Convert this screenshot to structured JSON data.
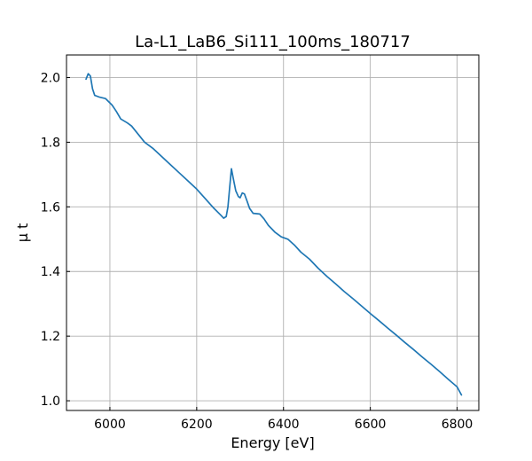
{
  "chart_data": {
    "type": "line",
    "title": "La-L1_LaB6_Si111_100ms_180717",
    "xlabel": "Energy [eV]",
    "ylabel": "μ t",
    "xlim": [
      5900,
      6850
    ],
    "ylim": [
      0.97,
      2.07
    ],
    "xticks": [
      6000,
      6200,
      6400,
      6600,
      6800
    ],
    "yticks": [
      1.0,
      1.2,
      1.4,
      1.6,
      1.8,
      2.0
    ],
    "xtick_labels": [
      "6000",
      "6200",
      "6400",
      "6600",
      "6800"
    ],
    "ytick_labels": [
      "1.0",
      "1.2",
      "1.4",
      "1.6",
      "1.8",
      "2.0"
    ],
    "grid": true,
    "legend": "none",
    "series": [
      {
        "color": "#1f77b4",
        "points": [
          [
            5945,
            1.995
          ],
          [
            5950,
            2.012
          ],
          [
            5955,
            2.005
          ],
          [
            5960,
            1.965
          ],
          [
            5965,
            1.945
          ],
          [
            5975,
            1.94
          ],
          [
            5990,
            1.935
          ],
          [
            6005,
            1.915
          ],
          [
            6015,
            1.895
          ],
          [
            6025,
            1.872
          ],
          [
            6040,
            1.86
          ],
          [
            6050,
            1.85
          ],
          [
            6065,
            1.825
          ],
          [
            6080,
            1.8
          ],
          [
            6100,
            1.78
          ],
          [
            6120,
            1.755
          ],
          [
            6140,
            1.73
          ],
          [
            6160,
            1.705
          ],
          [
            6180,
            1.68
          ],
          [
            6200,
            1.655
          ],
          [
            6220,
            1.625
          ],
          [
            6240,
            1.595
          ],
          [
            6255,
            1.575
          ],
          [
            6262,
            1.565
          ],
          [
            6268,
            1.57
          ],
          [
            6272,
            1.6
          ],
          [
            6276,
            1.66
          ],
          [
            6280,
            1.718
          ],
          [
            6284,
            1.69
          ],
          [
            6290,
            1.65
          ],
          [
            6296,
            1.632
          ],
          [
            6300,
            1.628
          ],
          [
            6305,
            1.643
          ],
          [
            6310,
            1.64
          ],
          [
            6316,
            1.618
          ],
          [
            6322,
            1.595
          ],
          [
            6330,
            1.58
          ],
          [
            6345,
            1.578
          ],
          [
            6355,
            1.563
          ],
          [
            6365,
            1.543
          ],
          [
            6380,
            1.522
          ],
          [
            6395,
            1.507
          ],
          [
            6410,
            1.5
          ],
          [
            6425,
            1.482
          ],
          [
            6440,
            1.46
          ],
          [
            6460,
            1.438
          ],
          [
            6480,
            1.41
          ],
          [
            6500,
            1.385
          ],
          [
            6520,
            1.362
          ],
          [
            6540,
            1.338
          ],
          [
            6560,
            1.316
          ],
          [
            6580,
            1.293
          ],
          [
            6600,
            1.27
          ],
          [
            6620,
            1.248
          ],
          [
            6640,
            1.225
          ],
          [
            6660,
            1.203
          ],
          [
            6680,
            1.18
          ],
          [
            6700,
            1.158
          ],
          [
            6720,
            1.135
          ],
          [
            6740,
            1.113
          ],
          [
            6760,
            1.09
          ],
          [
            6780,
            1.066
          ],
          [
            6800,
            1.043
          ],
          [
            6810,
            1.018
          ]
        ]
      }
    ]
  }
}
